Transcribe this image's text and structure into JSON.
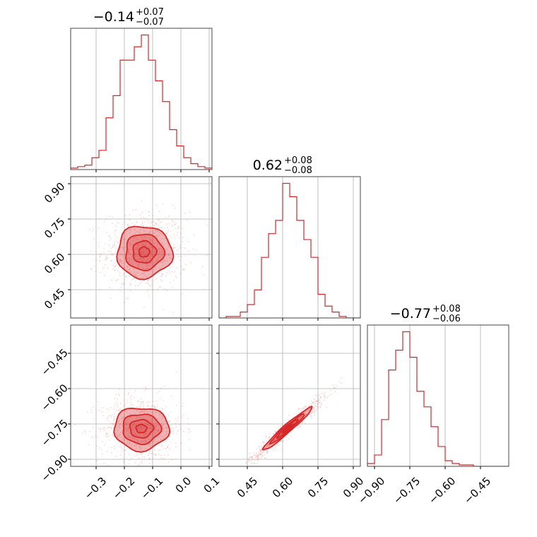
{
  "chart_data": {
    "type": "corner",
    "color": "#d62728",
    "grid": true,
    "parameters": [
      {
        "title": {
          "median": "−0.14",
          "plus": "+0.07",
          "minus": "−0.07"
        },
        "range": [
          -0.39,
          0.11
        ],
        "ticks": [
          -0.3,
          -0.2,
          -0.1,
          0.0,
          0.1
        ],
        "tick_labels": [
          "−0.3",
          "−0.2",
          "−0.1",
          "0.0",
          "0.1"
        ],
        "histogram": {
          "edges": [
            -0.39,
            -0.365,
            -0.34,
            -0.315,
            -0.29,
            -0.265,
            -0.24,
            -0.215,
            -0.19,
            -0.165,
            -0.14,
            -0.115,
            -0.09,
            -0.065,
            -0.04,
            -0.015,
            0.01,
            0.035,
            0.06,
            0.085,
            0.11
          ],
          "counts": [
            0.01,
            0.02,
            0.03,
            0.08,
            0.13,
            0.35,
            0.5,
            0.74,
            0.74,
            0.83,
            0.91,
            0.74,
            0.6,
            0.46,
            0.27,
            0.16,
            0.08,
            0.04,
            0.02,
            0.01
          ]
        }
      },
      {
        "title": {
          "median": "0.62",
          "plus": "+0.08",
          "minus": "−0.08"
        },
        "range": [
          0.33,
          0.93
        ],
        "ticks": [
          0.45,
          0.6,
          0.75,
          0.9
        ],
        "tick_labels": [
          "0.45",
          "0.60",
          "0.75",
          "0.90"
        ],
        "histogram": {
          "edges": [
            0.33,
            0.36,
            0.39,
            0.42,
            0.45,
            0.48,
            0.51,
            0.54,
            0.57,
            0.6,
            0.63,
            0.66,
            0.69,
            0.72,
            0.75,
            0.78,
            0.81,
            0.84,
            0.87,
            0.9,
            0.93
          ],
          "counts": [
            0.0,
            0.01,
            0.01,
            0.04,
            0.09,
            0.19,
            0.41,
            0.57,
            0.66,
            0.91,
            0.82,
            0.66,
            0.53,
            0.41,
            0.16,
            0.08,
            0.04,
            0.01,
            0.0,
            0.0
          ]
        }
      },
      {
        "title": {
          "median": "−0.77",
          "plus": "+0.08",
          "minus": "−0.06"
        },
        "range": [
          -0.93,
          -0.33
        ],
        "ticks": [
          -0.9,
          -0.75,
          -0.6,
          -0.45
        ],
        "tick_labels": [
          "−0.90",
          "−0.75",
          "−0.60",
          "−0.45"
        ],
        "histogram": {
          "edges": [
            -0.93,
            -0.9,
            -0.87,
            -0.84,
            -0.81,
            -0.78,
            -0.75,
            -0.72,
            -0.69,
            -0.66,
            -0.63,
            -0.6,
            -0.57,
            -0.54,
            -0.51,
            -0.48,
            -0.45,
            -0.42,
            -0.39,
            -0.36,
            -0.33
          ],
          "counts": [
            0.02,
            0.08,
            0.33,
            0.68,
            0.82,
            0.95,
            0.77,
            0.53,
            0.42,
            0.28,
            0.14,
            0.04,
            0.02,
            0.01,
            0.01,
            0.0,
            0.0,
            0.0,
            0.0,
            0.0
          ]
        }
      }
    ],
    "pairs": [
      {
        "row": 1,
        "col": 0,
        "center": [
          -0.13,
          0.61
        ],
        "spread": [
          0.075,
          0.085
        ],
        "rho": 0.0,
        "contours": [
          {
            "level": 0.5,
            "radius": 0.25
          },
          {
            "level": 1.0,
            "radius": 0.55
          },
          {
            "level": 1.5,
            "radius": 0.9
          },
          {
            "level": 2.0,
            "radius": 1.3
          }
        ]
      },
      {
        "row": 2,
        "col": 0,
        "center": [
          -0.14,
          -0.77
        ],
        "spread": [
          0.075,
          0.07
        ],
        "rho": 0.0,
        "contours": [
          {
            "level": 0.5,
            "radius": 0.25
          },
          {
            "level": 1.0,
            "radius": 0.55
          },
          {
            "level": 1.5,
            "radius": 0.9
          },
          {
            "level": 2.0,
            "radius": 1.3
          }
        ]
      },
      {
        "row": 2,
        "col": 1,
        "center": [
          0.62,
          -0.77
        ],
        "spread": [
          0.08,
          0.07
        ],
        "rho": 0.97,
        "contours": [
          {
            "level": 0.5,
            "radius": 0.25
          },
          {
            "level": 1.0,
            "radius": 0.55
          },
          {
            "level": 1.5,
            "radius": 0.9
          },
          {
            "level": 2.0,
            "radius": 1.3
          }
        ]
      }
    ]
  }
}
